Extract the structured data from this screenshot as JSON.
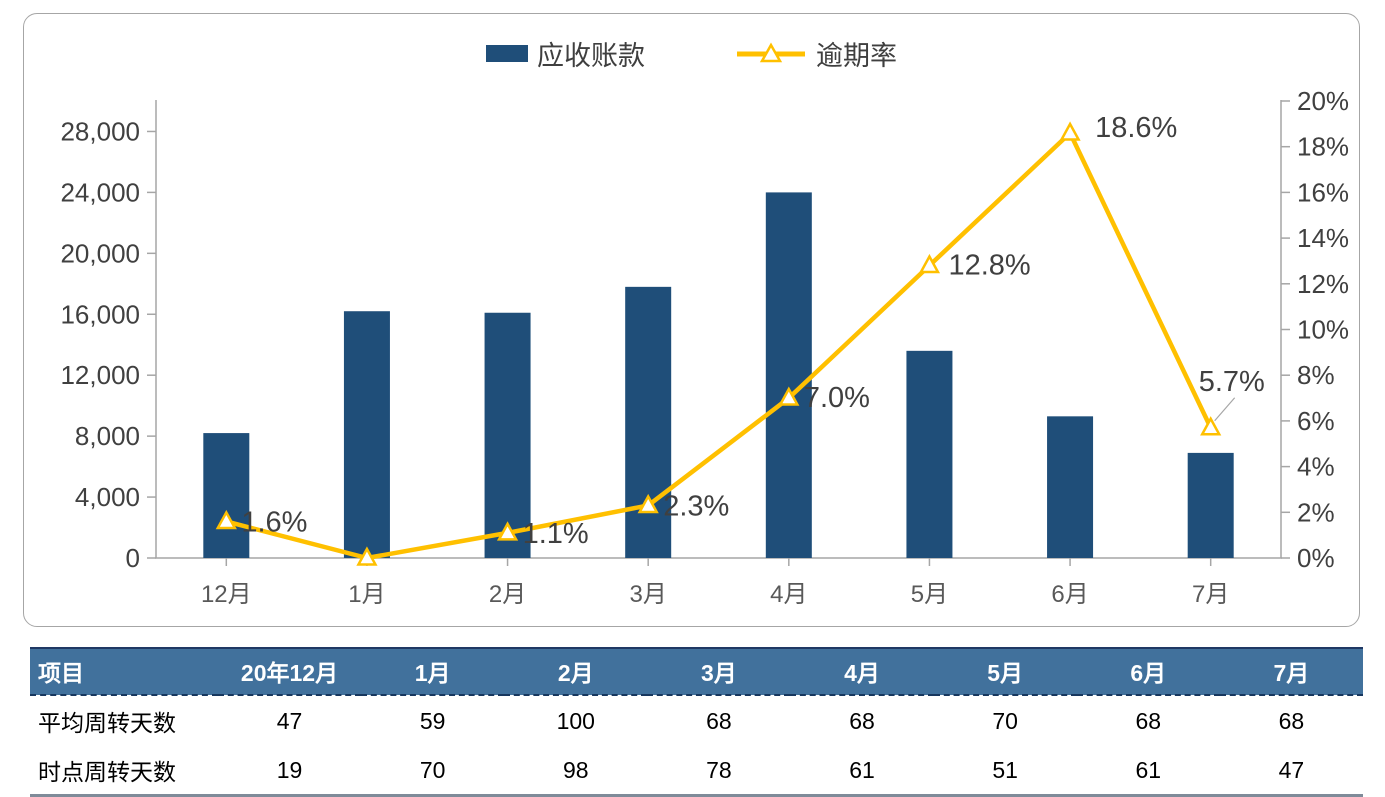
{
  "colors": {
    "bar": "#1F4E79",
    "line": "#FFC000",
    "marker_fill": "#FFFFFF",
    "axis": "#A6A6A6",
    "leader": "#A6A6A6",
    "table_header_bg": "#41719C",
    "table_header_text": "#FFFFFF",
    "table_top_border": "#1F3864",
    "table_bottom_border": "#7F8B99"
  },
  "chart_data": {
    "type": "combo",
    "title": "",
    "grid": false,
    "legend_position": "top-center",
    "categories": [
      "12月",
      "1月",
      "2月",
      "3月",
      "4月",
      "5月",
      "6月",
      "7月"
    ],
    "series": [
      {
        "name": "应收账款",
        "type": "bar",
        "axis": "left",
        "color": "#1F4E79",
        "values": [
          8200,
          16200,
          16100,
          17800,
          24000,
          13600,
          9300,
          6900
        ]
      },
      {
        "name": "逾期率",
        "type": "line",
        "axis": "right",
        "color": "#FFC000",
        "values": [
          1.6,
          0.0,
          1.1,
          2.3,
          7.0,
          12.8,
          18.6,
          5.7
        ],
        "point_labels": [
          {
            "text": "1.6%",
            "dx": 15,
            "dy": 10
          },
          {
            "text": "",
            "dx": 0,
            "dy": 0
          },
          {
            "text": "1.1%",
            "dx": 15,
            "dy": 10
          },
          {
            "text": "2.3%",
            "dx": 15,
            "dy": 10
          },
          {
            "text": "7.0%",
            "dx": 15,
            "dy": 9
          },
          {
            "text": "12.8%",
            "dx": 19,
            "dy": 9
          },
          {
            "text": "18.6%",
            "dx": 25,
            "dy": 4
          },
          {
            "text": "5.7%",
            "dx": -12,
            "dy": -37,
            "leader": true
          }
        ]
      }
    ],
    "left_axis": {
      "min": 0,
      "max": 30000,
      "tick_step": 4000,
      "ticks": [
        "0",
        "4,000",
        "8,000",
        "12,000",
        "16,000",
        "20,000",
        "24,000",
        "28,000"
      ]
    },
    "right_axis": {
      "min": 0,
      "max": 20,
      "tick_step": 2,
      "ticks": [
        "0%",
        "2%",
        "4%",
        "6%",
        "8%",
        "10%",
        "12%",
        "14%",
        "16%",
        "18%",
        "20%"
      ]
    }
  },
  "table": {
    "columns": [
      "项目",
      "20年12月",
      "1月",
      "2月",
      "3月",
      "4月",
      "5月",
      "6月",
      "7月"
    ],
    "rows": [
      {
        "label": "平均周转天数",
        "values": [
          "47",
          "59",
          "100",
          "68",
          "68",
          "70",
          "68",
          "68"
        ]
      },
      {
        "label": "时点周转天数",
        "values": [
          "19",
          "70",
          "98",
          "78",
          "61",
          "51",
          "61",
          "47"
        ]
      }
    ]
  }
}
